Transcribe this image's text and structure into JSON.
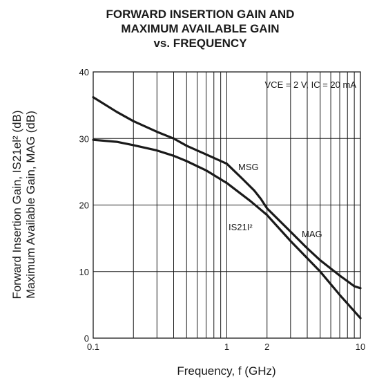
{
  "chart_data": {
    "type": "line",
    "title_lines": [
      "FORWARD INSERTION GAIN AND",
      "MAXIMUM AVAILABLE GAIN",
      "vs. FREQUENCY"
    ],
    "xlabel": "Frequency, f (GHz)",
    "ylabel_lines": [
      "Forward Insertion Gain, IS21el² (dB)",
      "Maximum Available Gain, MAG (dB)"
    ],
    "x_scale": "log",
    "xlim": [
      0.1,
      10
    ],
    "ylim": [
      0,
      40
    ],
    "x_ticks": [
      {
        "value": 0.1,
        "label": "0.1"
      },
      {
        "value": 1,
        "label": "1"
      },
      {
        "value": 2,
        "label": "2"
      },
      {
        "value": 10,
        "label": "10"
      }
    ],
    "y_ticks": [
      {
        "value": 0,
        "label": "0"
      },
      {
        "value": 10,
        "label": "10"
      },
      {
        "value": 20,
        "label": "20"
      },
      {
        "value": 30,
        "label": "30"
      },
      {
        "value": 40,
        "label": "40"
      }
    ],
    "grid": true,
    "annotations": {
      "condition": "VCE = 2 V, IC = 20 mA",
      "msg": "MSG",
      "mag": "MAG",
      "s21": "IS21I²"
    },
    "series": [
      {
        "name": "MSG / MAG",
        "x": [
          0.1,
          0.15,
          0.2,
          0.3,
          0.4,
          0.5,
          0.7,
          1.0,
          1.3,
          1.6,
          1.8,
          2.0,
          3.0,
          4.0,
          5.0,
          7.0,
          9.0,
          10.0
        ],
        "y": [
          36.2,
          34.0,
          32.6,
          31.0,
          30.0,
          28.9,
          27.6,
          26.2,
          24.0,
          22.2,
          20.9,
          19.5,
          16.0,
          13.5,
          11.7,
          9.4,
          7.8,
          7.5
        ]
      },
      {
        "name": "IS21I²",
        "x": [
          0.1,
          0.15,
          0.2,
          0.3,
          0.4,
          0.5,
          0.7,
          1.0,
          1.5,
          2.0,
          3.0,
          5.0,
          7.0,
          10.0
        ],
        "y": [
          29.8,
          29.5,
          29.0,
          28.2,
          27.4,
          26.6,
          25.2,
          23.3,
          20.6,
          18.5,
          14.6,
          10.0,
          6.5,
          3.0
        ]
      }
    ]
  }
}
